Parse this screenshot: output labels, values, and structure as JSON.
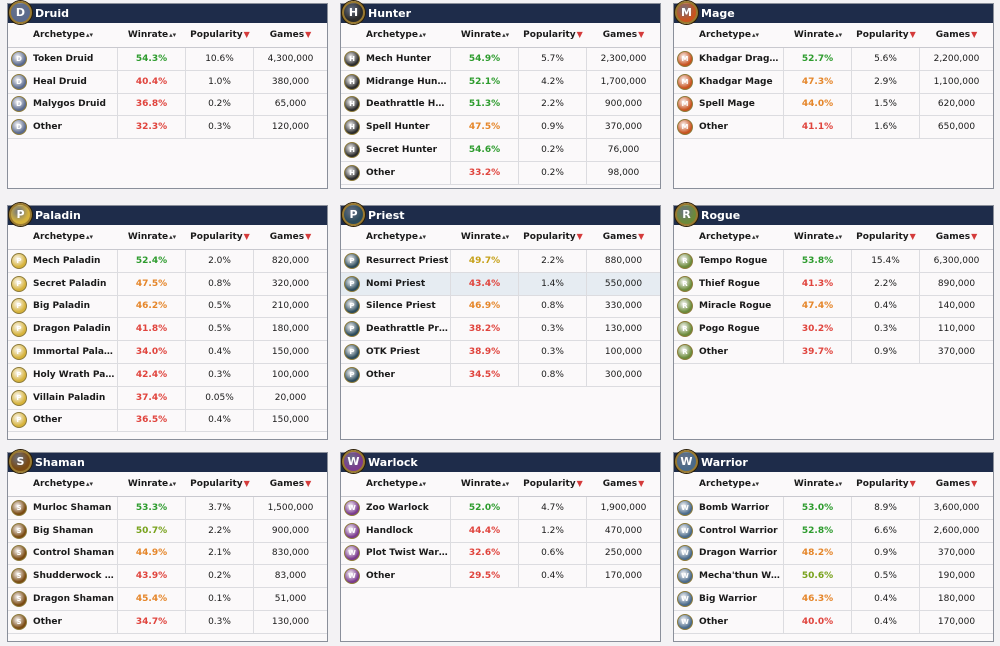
{
  "columns": {
    "archetype": "Archetype",
    "winrate": "Winrate",
    "popularity": "Popularity",
    "games": "Games"
  },
  "sort_icons": {
    "both": "▴▾",
    "down": "▼"
  },
  "colors": {
    "high": "#2e9c2e",
    "mid_high": "#78a21c",
    "mid": "#c6a11a",
    "mid_low": "#e5862a",
    "low": "#e0443d",
    "header": "#1e2c4a"
  },
  "panels": [
    {
      "id": "druid",
      "name": "Druid",
      "icon": "druid-icon",
      "glyph": "D",
      "color": "#5a6a8e",
      "rows": [
        {
          "name": "Token Druid",
          "winrate": "54.3%",
          "popularity": "10.6%",
          "games": "4,300,000",
          "tone": "high"
        },
        {
          "name": "Heal Druid",
          "winrate": "40.4%",
          "popularity": "1.0%",
          "games": "380,000",
          "tone": "low"
        },
        {
          "name": "Malygos Druid",
          "winrate": "36.8%",
          "popularity": "0.2%",
          "games": "65,000",
          "tone": "low"
        },
        {
          "name": "Other",
          "winrate": "32.3%",
          "popularity": "0.3%",
          "games": "120,000",
          "tone": "low"
        }
      ]
    },
    {
      "id": "hunter",
      "name": "Hunter",
      "icon": "hunter-icon",
      "glyph": "H",
      "color": "#2b2b2b",
      "rows": [
        {
          "name": "Mech Hunter",
          "winrate": "54.9%",
          "popularity": "5.7%",
          "games": "2,300,000",
          "tone": "high"
        },
        {
          "name": "Midrange Hunter",
          "winrate": "52.1%",
          "popularity": "4.2%",
          "games": "1,700,000",
          "tone": "high"
        },
        {
          "name": "Deathrattle Hu...",
          "winrate": "51.3%",
          "popularity": "2.2%",
          "games": "900,000",
          "tone": "high"
        },
        {
          "name": "Spell Hunter",
          "winrate": "47.5%",
          "popularity": "0.9%",
          "games": "370,000",
          "tone": "mid_low"
        },
        {
          "name": "Secret Hunter",
          "winrate": "54.6%",
          "popularity": "0.2%",
          "games": "76,000",
          "tone": "high"
        },
        {
          "name": "Other",
          "winrate": "33.2%",
          "popularity": "0.2%",
          "games": "98,000",
          "tone": "low"
        }
      ]
    },
    {
      "id": "mage",
      "name": "Mage",
      "icon": "mage-icon",
      "glyph": "M",
      "color": "#c8531f",
      "rows": [
        {
          "name": "Khadgar Drago...",
          "winrate": "52.7%",
          "popularity": "5.6%",
          "games": "2,200,000",
          "tone": "high"
        },
        {
          "name": "Khadgar Mage",
          "winrate": "47.3%",
          "popularity": "2.9%",
          "games": "1,100,000",
          "tone": "mid_low"
        },
        {
          "name": "Spell Mage",
          "winrate": "44.0%",
          "popularity": "1.5%",
          "games": "620,000",
          "tone": "mid_low"
        },
        {
          "name": "Other",
          "winrate": "41.1%",
          "popularity": "1.6%",
          "games": "650,000",
          "tone": "low"
        }
      ]
    },
    {
      "id": "paladin",
      "name": "Paladin",
      "icon": "paladin-icon",
      "glyph": "P",
      "color": "#d6b23a",
      "rows": [
        {
          "name": "Mech Paladin",
          "winrate": "52.4%",
          "popularity": "2.0%",
          "games": "820,000",
          "tone": "high"
        },
        {
          "name": "Secret Paladin",
          "winrate": "47.5%",
          "popularity": "0.8%",
          "games": "320,000",
          "tone": "mid_low"
        },
        {
          "name": "Big Paladin",
          "winrate": "46.2%",
          "popularity": "0.5%",
          "games": "210,000",
          "tone": "mid_low"
        },
        {
          "name": "Dragon Paladin",
          "winrate": "41.8%",
          "popularity": "0.5%",
          "games": "180,000",
          "tone": "low"
        },
        {
          "name": "Immortal Paladin",
          "winrate": "34.0%",
          "popularity": "0.4%",
          "games": "150,000",
          "tone": "low"
        },
        {
          "name": "Holy Wrath Pal...",
          "winrate": "42.4%",
          "popularity": "0.3%",
          "games": "100,000",
          "tone": "low"
        },
        {
          "name": "Villain Paladin",
          "winrate": "37.4%",
          "popularity": "0.05%",
          "games": "20,000",
          "tone": "low"
        },
        {
          "name": "Other",
          "winrate": "36.5%",
          "popularity": "0.4%",
          "games": "150,000",
          "tone": "low"
        }
      ]
    },
    {
      "id": "priest",
      "name": "Priest",
      "icon": "priest-icon",
      "glyph": "P",
      "color": "#2b4a5a",
      "rows": [
        {
          "name": "Resurrect Priest",
          "winrate": "49.7%",
          "popularity": "2.2%",
          "games": "880,000",
          "tone": "mid"
        },
        {
          "name": "Nomi Priest",
          "winrate": "43.4%",
          "popularity": "1.4%",
          "games": "550,000",
          "tone": "low",
          "highlight": true
        },
        {
          "name": "Silence Priest",
          "winrate": "46.9%",
          "popularity": "0.8%",
          "games": "330,000",
          "tone": "mid_low"
        },
        {
          "name": "Deathrattle Pri...",
          "winrate": "38.2%",
          "popularity": "0.3%",
          "games": "130,000",
          "tone": "low"
        },
        {
          "name": "OTK Priest",
          "winrate": "38.9%",
          "popularity": "0.3%",
          "games": "100,000",
          "tone": "low"
        },
        {
          "name": "Other",
          "winrate": "34.5%",
          "popularity": "0.8%",
          "games": "300,000",
          "tone": "low"
        }
      ]
    },
    {
      "id": "rogue",
      "name": "Rogue",
      "icon": "rogue-icon",
      "glyph": "R",
      "color": "#6b8a3a",
      "rows": [
        {
          "name": "Tempo Rogue",
          "winrate": "53.8%",
          "popularity": "15.4%",
          "games": "6,300,000",
          "tone": "high"
        },
        {
          "name": "Thief Rogue",
          "winrate": "41.3%",
          "popularity": "2.2%",
          "games": "890,000",
          "tone": "low"
        },
        {
          "name": "Miracle Rogue",
          "winrate": "47.4%",
          "popularity": "0.4%",
          "games": "140,000",
          "tone": "mid_low"
        },
        {
          "name": "Pogo Rogue",
          "winrate": "30.2%",
          "popularity": "0.3%",
          "games": "110,000",
          "tone": "low"
        },
        {
          "name": "Other",
          "winrate": "39.7%",
          "popularity": "0.9%",
          "games": "370,000",
          "tone": "low"
        }
      ]
    },
    {
      "id": "shaman",
      "name": "Shaman",
      "icon": "shaman-icon",
      "glyph": "S",
      "color": "#7a4a12",
      "rows": [
        {
          "name": "Murloc Shaman",
          "winrate": "53.3%",
          "popularity": "3.7%",
          "games": "1,500,000",
          "tone": "high"
        },
        {
          "name": "Big Shaman",
          "winrate": "50.7%",
          "popularity": "2.2%",
          "games": "900,000",
          "tone": "mid_high"
        },
        {
          "name": "Control Shaman",
          "winrate": "44.9%",
          "popularity": "2.1%",
          "games": "830,000",
          "tone": "mid_low"
        },
        {
          "name": "Shudderwock S...",
          "winrate": "43.9%",
          "popularity": "0.2%",
          "games": "83,000",
          "tone": "low"
        },
        {
          "name": "Dragon Shaman",
          "winrate": "45.4%",
          "popularity": "0.1%",
          "games": "51,000",
          "tone": "mid_low"
        },
        {
          "name": "Other",
          "winrate": "34.7%",
          "popularity": "0.3%",
          "games": "130,000",
          "tone": "low"
        }
      ]
    },
    {
      "id": "warlock",
      "name": "Warlock",
      "icon": "warlock-icon",
      "glyph": "W",
      "color": "#7a3a8e",
      "rows": [
        {
          "name": "Zoo Warlock",
          "winrate": "52.0%",
          "popularity": "4.7%",
          "games": "1,900,000",
          "tone": "high"
        },
        {
          "name": "Handlock",
          "winrate": "44.4%",
          "popularity": "1.2%",
          "games": "470,000",
          "tone": "low"
        },
        {
          "name": "Plot Twist Warl...",
          "winrate": "32.6%",
          "popularity": "0.6%",
          "games": "250,000",
          "tone": "low"
        },
        {
          "name": "Other",
          "winrate": "29.5%",
          "popularity": "0.4%",
          "games": "170,000",
          "tone": "low"
        }
      ]
    },
    {
      "id": "warrior",
      "name": "Warrior",
      "icon": "warrior-icon",
      "glyph": "W",
      "color": "#4a6a8a",
      "rows": [
        {
          "name": "Bomb Warrior",
          "winrate": "53.0%",
          "popularity": "8.9%",
          "games": "3,600,000",
          "tone": "high"
        },
        {
          "name": "Control Warrior",
          "winrate": "52.8%",
          "popularity": "6.6%",
          "games": "2,600,000",
          "tone": "high"
        },
        {
          "name": "Dragon Warrior",
          "winrate": "48.2%",
          "popularity": "0.9%",
          "games": "370,000",
          "tone": "mid_low"
        },
        {
          "name": "Mecha'thun Wa...",
          "winrate": "50.6%",
          "popularity": "0.5%",
          "games": "190,000",
          "tone": "mid_high"
        },
        {
          "name": "Big Warrior",
          "winrate": "46.3%",
          "popularity": "0.4%",
          "games": "180,000",
          "tone": "mid_low"
        },
        {
          "name": "Other",
          "winrate": "40.0%",
          "popularity": "0.4%",
          "games": "170,000",
          "tone": "low"
        }
      ]
    }
  ]
}
